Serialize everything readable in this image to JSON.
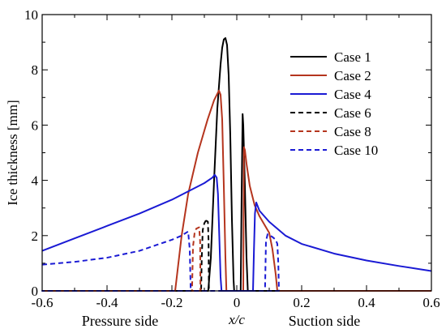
{
  "chart_data": {
    "type": "line",
    "xlabel": "x/c",
    "ylabel": "Ice thickness [mm]",
    "xlim": [
      -0.6,
      0.6
    ],
    "ylim": [
      0,
      10
    ],
    "x_ticks": [
      "-0.6",
      "-0.4",
      "-0.2",
      "0",
      "0.2",
      "0.4",
      "0.6"
    ],
    "y_ticks": [
      "0",
      "2",
      "4",
      "6",
      "8",
      "10"
    ],
    "annotations": {
      "pressure_side": "Pressure side",
      "suction_side": "Suction side"
    },
    "grid": false,
    "legend_position": "top-right",
    "series": [
      {
        "name": "Case 1",
        "color": "#000000",
        "dash": "solid",
        "points": [
          [
            -0.6,
            0
          ],
          [
            -0.088,
            0
          ],
          [
            -0.08,
            1.2
          ],
          [
            -0.07,
            4.0
          ],
          [
            -0.06,
            6.6
          ],
          [
            -0.05,
            8.2
          ],
          [
            -0.045,
            8.8
          ],
          [
            -0.04,
            9.1
          ],
          [
            -0.035,
            9.15
          ],
          [
            -0.03,
            8.9
          ],
          [
            -0.025,
            7.8
          ],
          [
            -0.02,
            5.6
          ],
          [
            -0.015,
            2.6
          ],
          [
            -0.01,
            0.4
          ],
          [
            -0.008,
            0
          ],
          [
            0.012,
            0
          ],
          [
            0.015,
            3.5
          ],
          [
            0.018,
            6.4
          ],
          [
            0.02,
            6.0
          ],
          [
            0.025,
            3.8
          ],
          [
            0.03,
            1.2
          ],
          [
            0.034,
            0
          ],
          [
            0.6,
            0
          ]
        ]
      },
      {
        "name": "Case 2",
        "color": "#b5351e",
        "dash": "solid",
        "points": [
          [
            -0.6,
            0
          ],
          [
            -0.19,
            0
          ],
          [
            -0.17,
            2.0
          ],
          [
            -0.15,
            3.5
          ],
          [
            -0.12,
            5.0
          ],
          [
            -0.09,
            6.2
          ],
          [
            -0.07,
            6.9
          ],
          [
            -0.055,
            7.25
          ],
          [
            -0.05,
            7.1
          ],
          [
            -0.045,
            6.2
          ],
          [
            -0.04,
            3.8
          ],
          [
            -0.035,
            1.2
          ],
          [
            -0.032,
            0
          ],
          [
            0.02,
            0
          ],
          [
            0.022,
            5.2
          ],
          [
            0.025,
            5.1
          ],
          [
            0.03,
            4.6
          ],
          [
            0.04,
            3.8
          ],
          [
            0.055,
            3.1
          ],
          [
            0.07,
            2.7
          ],
          [
            0.085,
            2.4
          ],
          [
            0.1,
            2.1
          ],
          [
            0.11,
            1.5
          ],
          [
            0.12,
            0.6
          ],
          [
            0.125,
            0
          ],
          [
            0.6,
            0
          ]
        ]
      },
      {
        "name": "Case 4",
        "color": "#1a1ad4",
        "dash": "solid",
        "points": [
          [
            -0.6,
            1.45
          ],
          [
            -0.5,
            1.9
          ],
          [
            -0.4,
            2.35
          ],
          [
            -0.3,
            2.8
          ],
          [
            -0.2,
            3.3
          ],
          [
            -0.15,
            3.6
          ],
          [
            -0.1,
            3.9
          ],
          [
            -0.075,
            4.1
          ],
          [
            -0.068,
            4.2
          ],
          [
            -0.062,
            4.1
          ],
          [
            -0.058,
            3.5
          ],
          [
            -0.054,
            2.0
          ],
          [
            -0.05,
            0.5
          ],
          [
            -0.047,
            0
          ],
          [
            0.05,
            0
          ],
          [
            0.053,
            1.5
          ],
          [
            0.056,
            2.8
          ],
          [
            0.06,
            3.2
          ],
          [
            0.07,
            2.9
          ],
          [
            0.1,
            2.5
          ],
          [
            0.15,
            2.0
          ],
          [
            0.2,
            1.7
          ],
          [
            0.3,
            1.35
          ],
          [
            0.4,
            1.1
          ],
          [
            0.5,
            0.9
          ],
          [
            0.6,
            0.72
          ]
        ]
      },
      {
        "name": "Case 6",
        "color": "#000000",
        "dash": "dashed",
        "points": [
          [
            -0.095,
            2.55
          ],
          [
            -0.1,
            2.45
          ],
          [
            -0.105,
            2.2
          ],
          [
            -0.108,
            1.2
          ],
          [
            -0.11,
            0
          ],
          [
            -0.086,
            0
          ],
          [
            -0.087,
            1.8
          ],
          [
            -0.089,
            2.5
          ],
          [
            -0.095,
            2.55
          ]
        ]
      },
      {
        "name": "Case 8",
        "color": "#b5351e",
        "dash": "dashed",
        "points": [
          [
            -0.13,
            2.1
          ],
          [
            -0.135,
            1.6
          ],
          [
            -0.138,
            0
          ],
          [
            -0.112,
            0
          ],
          [
            -0.113,
            1.8
          ],
          [
            -0.116,
            2.3
          ],
          [
            -0.125,
            2.25
          ],
          [
            -0.13,
            2.1
          ]
        ]
      },
      {
        "name": "Case 10",
        "color": "#1a1ad4",
        "dash": "dashed",
        "points": [
          [
            -0.6,
            0.95
          ],
          [
            -0.5,
            1.05
          ],
          [
            -0.4,
            1.2
          ],
          [
            -0.3,
            1.45
          ],
          [
            -0.25,
            1.65
          ],
          [
            -0.2,
            1.85
          ],
          [
            -0.17,
            2.0
          ],
          [
            -0.15,
            2.15
          ],
          [
            -0.145,
            1.5
          ],
          [
            -0.142,
            0
          ],
          [
            -0.6,
            0
          ],
          [
            0.13,
            0
          ],
          [
            0.128,
            1.0
          ],
          [
            0.125,
            1.7
          ],
          [
            0.12,
            1.85
          ],
          [
            0.11,
            1.95
          ],
          [
            0.095,
            2.05
          ],
          [
            0.09,
            1.8
          ],
          [
            0.087,
            0
          ]
        ]
      }
    ]
  }
}
